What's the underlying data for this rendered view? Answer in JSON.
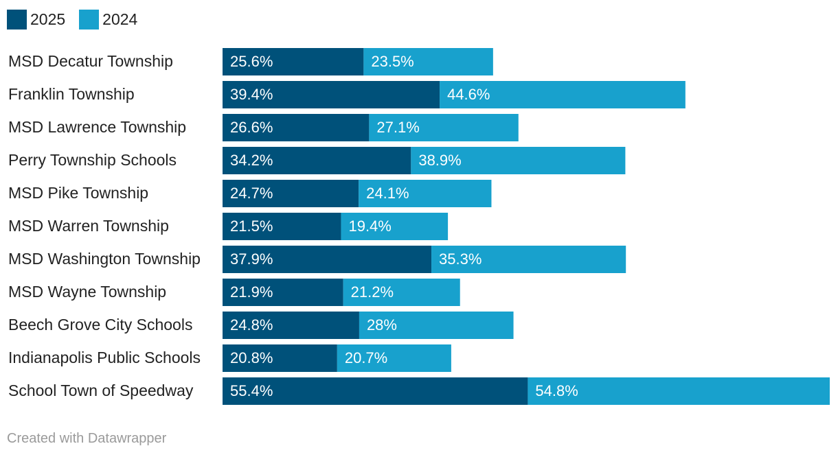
{
  "colors": {
    "2025": "#00517a",
    "2024": "#18a1cd",
    "label_text": "#222222",
    "value_text": "#ffffff",
    "footer_text": "#9a9a9a"
  },
  "legend": {
    "items": [
      {
        "label": "2025",
        "color": "#00517a"
      },
      {
        "label": "2024",
        "color": "#18a1cd"
      }
    ]
  },
  "footer": {
    "text": "Created with Datawrapper"
  },
  "chart_data": {
    "type": "bar",
    "orientation": "horizontal",
    "stacked": true,
    "categories": [
      "MSD Decatur Township",
      "Franklin Township",
      "MSD Lawrence Township",
      "Perry Township Schools",
      "MSD Pike Township",
      "MSD Warren Township",
      "MSD Washington Township",
      "MSD Wayne Township",
      "Beech Grove City Schools",
      "Indianapolis Public Schools",
      "School Town of Speedway"
    ],
    "series": [
      {
        "name": "2025",
        "color": "#00517a",
        "values": [
          25.6,
          39.4,
          26.6,
          34.2,
          24.7,
          21.5,
          37.9,
          21.9,
          24.8,
          20.8,
          55.4
        ],
        "labels": [
          "25.6%",
          "39.4%",
          "26.6%",
          "34.2%",
          "24.7%",
          "21.5%",
          "37.9%",
          "21.9%",
          "24.8%",
          "20.8%",
          "55.4%"
        ]
      },
      {
        "name": "2024",
        "color": "#18a1cd",
        "values": [
          23.5,
          44.6,
          27.1,
          38.9,
          24.1,
          19.4,
          35.3,
          21.2,
          28.0,
          20.7,
          54.8
        ],
        "labels": [
          "23.5%",
          "44.6%",
          "27.1%",
          "38.9%",
          "24.1%",
          "19.4%",
          "35.3%",
          "21.2%",
          "28%",
          "20.7%",
          "54.8%"
        ]
      }
    ],
    "xlim": [
      0,
      110.2
    ],
    "grid": false,
    "legend_position": "top-left"
  }
}
